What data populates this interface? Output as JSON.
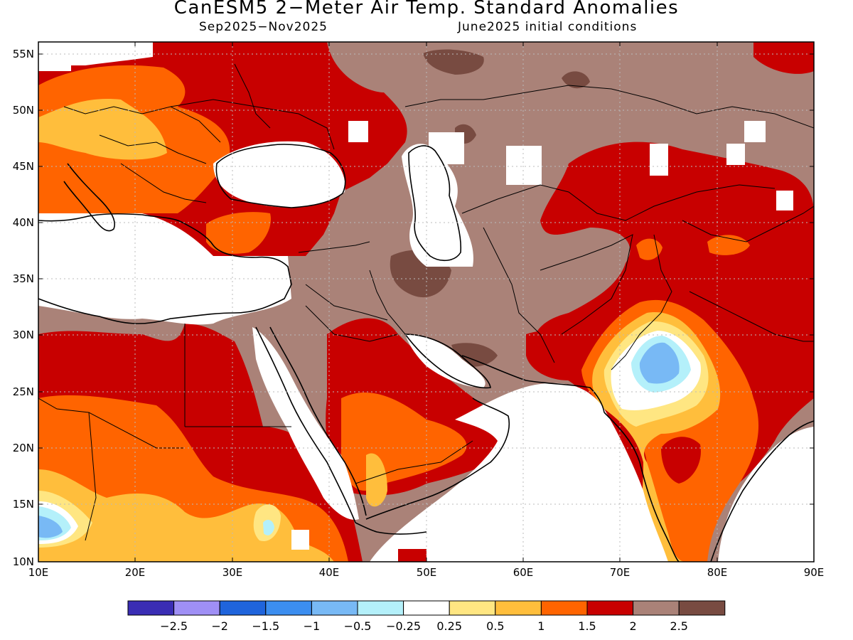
{
  "title": "CanESM5 2−Meter Air Temp. Standard Anomalies",
  "subtitle_left": "Sep2025−Nov2025",
  "subtitle_right": "June2025 initial conditions",
  "lat_labels": [
    "55N",
    "50N",
    "45N",
    "40N",
    "35N",
    "30N",
    "25N",
    "20N",
    "15N",
    "10N"
  ],
  "lon_labels": [
    "10E",
    "20E",
    "30E",
    "40E",
    "50E",
    "60E",
    "70E",
    "80E",
    "90E"
  ],
  "colorbar": {
    "colors": [
      "#3a2db4",
      "#9f8ff5",
      "#1f64dc",
      "#3c8ef0",
      "#78b9f5",
      "#b4f0fa",
      "#ffffff",
      "#ffe682",
      "#ffbe3c",
      "#ff6400",
      "#c80000",
      "#aa8278",
      "#784b41"
    ],
    "labels": [
      "−2.5",
      "−2",
      "−1.5",
      "−1",
      "−0.5",
      "−0.25",
      "0.25",
      "0.5",
      "1",
      "1.5",
      "2",
      "2.5"
    ]
  },
  "colors": {
    "white": "#ffffff",
    "pale_yellow": "#ffe682",
    "light_orange": "#ffbe3c",
    "orange": "#ff6400",
    "red": "#c80000",
    "light_brown": "#aa8278",
    "dark_brown": "#784b41",
    "light_blue": "#78b9f5",
    "pale_cyan": "#b4f0fa",
    "blue": "#3c8ef0"
  }
}
